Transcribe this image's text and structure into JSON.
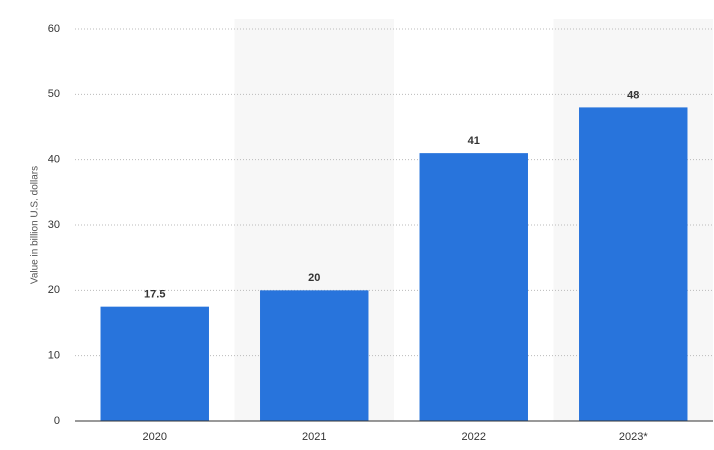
{
  "chart_data": {
    "type": "bar",
    "y_label": "Value in billion U.S. dollars",
    "categories": [
      "2020",
      "2021",
      "2022",
      "2023*"
    ],
    "values": [
      17.5,
      20,
      41,
      48
    ],
    "color": "#2874dc",
    "ylim": [
      0,
      60
    ],
    "yticks": [
      0,
      10,
      20,
      30,
      40,
      50,
      60
    ],
    "grid": true
  }
}
